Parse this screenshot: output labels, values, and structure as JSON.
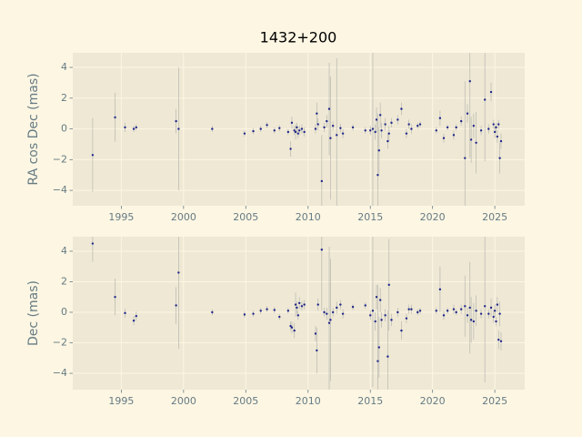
{
  "chart_data": [
    {
      "type": "scatter",
      "title": "1432+200",
      "y_label": "RA cos Dec (mas)",
      "x": [
        1992.7,
        1994.5,
        1995.3,
        1996.0,
        1996.2,
        1999.4,
        1999.6,
        2002.3,
        2004.9,
        2005.6,
        2006.2,
        2006.7,
        2007.3,
        2007.7,
        2008.4,
        2008.6,
        2008.7,
        2008.9,
        2009.0,
        2009.1,
        2009.2,
        2009.3,
        2009.5,
        2009.7,
        2010.6,
        2010.7,
        2010.8,
        2011.1,
        2011.3,
        2011.5,
        2011.7,
        2011.8,
        2012.0,
        2012.3,
        2012.6,
        2012.8,
        2013.6,
        2014.6,
        2015.0,
        2015.2,
        2015.4,
        2015.5,
        2015.6,
        2015.7,
        2015.8,
        2015.9,
        2016.2,
        2016.4,
        2016.5,
        2016.7,
        2017.2,
        2017.5,
        2017.9,
        2018.1,
        2018.3,
        2018.8,
        2019.0,
        2020.3,
        2020.6,
        2020.9,
        2021.2,
        2021.7,
        2021.9,
        2022.3,
        2022.6,
        2022.8,
        2023.0,
        2023.1,
        2023.3,
        2023.5,
        2023.9,
        2024.2,
        2024.5,
        2024.7,
        2024.9,
        2025.0,
        2025.1,
        2025.2,
        2025.3,
        2025.4,
        2025.5
      ],
      "series": [
        {
          "color": "#22288a",
          "values": [
            -1.7,
            0.75,
            0.1,
            0.0,
            0.1,
            0.5,
            0.0,
            0.0,
            -0.3,
            -0.15,
            0.0,
            0.25,
            -0.1,
            0.05,
            -0.2,
            -1.3,
            0.4,
            -0.1,
            -0.2,
            0.1,
            -0.3,
            -0.1,
            0.0,
            -0.2,
            0.0,
            1.0,
            0.3,
            -3.4,
            0.1,
            0.5,
            1.3,
            -0.6,
            0.2,
            -0.4,
            0.05,
            -0.3,
            0.1,
            -0.1,
            -0.1,
            0.0,
            -0.2,
            0.6,
            -3.0,
            -1.4,
            0.9,
            -0.1,
            0.3,
            -0.8,
            -0.3,
            0.4,
            0.6,
            1.3,
            -0.3,
            0.3,
            0.0,
            0.2,
            0.3,
            -0.1,
            0.7,
            -0.6,
            0.1,
            -0.4,
            0.1,
            0.5,
            -1.9,
            1.0,
            3.1,
            -0.7,
            0.2,
            -0.9,
            -0.1,
            1.9,
            0.0,
            2.4,
            0.3,
            -0.2,
            0.1,
            -0.5,
            0.3,
            -1.9,
            -0.8
          ],
          "errors": [
            2.4,
            1.6,
            0.3,
            0.2,
            0.2,
            0.8,
            4.0,
            0.2,
            0.2,
            0.2,
            0.2,
            0.2,
            0.2,
            0.2,
            0.2,
            0.5,
            0.4,
            0.3,
            0.5,
            0.3,
            0.3,
            0.3,
            0.3,
            0.3,
            0.3,
            0.7,
            0.4,
            3.0,
            0.3,
            0.4,
            3.0,
            4.0,
            0.3,
            5.0,
            0.3,
            0.3,
            0.2,
            0.2,
            0.3,
            5.0,
            0.5,
            0.8,
            4.0,
            1.5,
            0.8,
            0.5,
            0.4,
            0.5,
            0.5,
            0.3,
            0.3,
            0.4,
            0.3,
            0.3,
            0.3,
            0.2,
            0.2,
            0.2,
            0.5,
            0.3,
            0.2,
            0.3,
            0.2,
            0.3,
            5.0,
            0.6,
            5.0,
            1.5,
            0.8,
            2.0,
            0.3,
            4.0,
            0.3,
            0.6,
            0.3,
            0.4,
            0.3,
            0.4,
            0.3,
            1.0,
            0.5
          ]
        }
      ],
      "xlim": [
        1991.1,
        2027.4
      ],
      "ylim": [
        -5.0,
        4.95
      ],
      "xticks": [
        1995,
        2000,
        2005,
        2010,
        2015,
        2020,
        2025
      ],
      "yticks": [
        {
          "value": -4,
          "label": "−4"
        },
        {
          "value": -2,
          "label": "−2"
        },
        0,
        2,
        4
      ],
      "grid": true
    },
    {
      "type": "scatter",
      "y_label": "Dec (mas)",
      "x": [
        1992.7,
        1994.5,
        1995.3,
        1996.0,
        1996.2,
        1999.4,
        1999.6,
        2002.3,
        2004.9,
        2005.6,
        2006.2,
        2006.7,
        2007.3,
        2007.7,
        2008.4,
        2008.6,
        2008.7,
        2008.9,
        2009.0,
        2009.1,
        2009.2,
        2009.3,
        2009.5,
        2009.7,
        2010.6,
        2010.7,
        2010.8,
        2011.1,
        2011.3,
        2011.5,
        2011.7,
        2011.8,
        2012.0,
        2012.3,
        2012.6,
        2012.8,
        2013.6,
        2014.6,
        2015.0,
        2015.2,
        2015.4,
        2015.5,
        2015.6,
        2015.7,
        2015.8,
        2015.9,
        2016.2,
        2016.4,
        2016.5,
        2016.7,
        2017.2,
        2017.5,
        2017.9,
        2018.1,
        2018.3,
        2018.8,
        2019.0,
        2020.3,
        2020.6,
        2020.9,
        2021.2,
        2021.7,
        2021.9,
        2022.3,
        2022.6,
        2022.8,
        2023.0,
        2023.1,
        2023.3,
        2023.5,
        2023.9,
        2024.2,
        2024.5,
        2024.7,
        2024.9,
        2025.0,
        2025.1,
        2025.2,
        2025.3,
        2025.4,
        2025.5
      ],
      "series": [
        {
          "color": "#22288a",
          "values": [
            4.5,
            1.0,
            -0.05,
            -0.55,
            -0.25,
            0.45,
            2.6,
            0.0,
            -0.15,
            -0.1,
            0.1,
            0.2,
            0.15,
            -0.3,
            0.1,
            -0.9,
            -1.0,
            -1.2,
            0.5,
            0.3,
            -0.2,
            0.6,
            0.4,
            0.5,
            -1.4,
            -2.5,
            0.5,
            4.1,
            0.0,
            -0.1,
            -0.7,
            -0.5,
            0.0,
            0.3,
            0.5,
            -0.1,
            0.35,
            0.45,
            -0.2,
            0.1,
            -0.6,
            1.0,
            -3.2,
            -2.3,
            0.8,
            -0.5,
            -0.2,
            -2.9,
            1.8,
            -0.5,
            0.0,
            -1.2,
            -0.4,
            0.2,
            0.2,
            0.0,
            0.1,
            0.1,
            1.5,
            -0.2,
            0.1,
            0.2,
            0.0,
            0.2,
            0.4,
            -0.2,
            0.3,
            -0.5,
            -0.6,
            0.1,
            -0.1,
            0.4,
            -0.1,
            0.3,
            -0.3,
            0.1,
            -0.6,
            0.5,
            -1.8,
            -0.1,
            -1.9
          ],
          "errors": [
            1.2,
            1.2,
            0.3,
            0.3,
            0.3,
            1.2,
            5.0,
            0.2,
            0.2,
            0.2,
            0.2,
            0.2,
            0.2,
            0.2,
            0.2,
            0.3,
            0.4,
            0.5,
            0.8,
            0.4,
            0.3,
            0.4,
            0.3,
            0.3,
            0.5,
            1.5,
            0.4,
            4.0,
            0.3,
            0.4,
            5.0,
            4.0,
            0.3,
            0.4,
            0.3,
            0.3,
            0.2,
            0.2,
            0.3,
            5.0,
            0.6,
            0.8,
            5.0,
            2.0,
            0.8,
            0.5,
            0.4,
            3.0,
            3.0,
            0.4,
            0.3,
            0.6,
            0.3,
            0.3,
            0.3,
            0.2,
            0.2,
            0.2,
            1.5,
            0.3,
            0.2,
            0.3,
            0.2,
            0.3,
            2.0,
            0.5,
            3.0,
            1.5,
            1.2,
            1.0,
            0.3,
            5.0,
            0.3,
            0.6,
            0.4,
            0.4,
            0.3,
            0.5,
            0.6,
            0.8,
            0.6
          ]
        }
      ],
      "xlim": [
        1991.1,
        2027.4
      ],
      "ylim": [
        -5.07,
        4.95
      ],
      "xticks": [
        1995,
        2000,
        2005,
        2010,
        2015,
        2020,
        2025
      ],
      "yticks": [
        {
          "value": -4,
          "label": "−4"
        },
        {
          "value": -2,
          "label": "−2"
        },
        0,
        2,
        4
      ],
      "grid": true
    }
  ]
}
